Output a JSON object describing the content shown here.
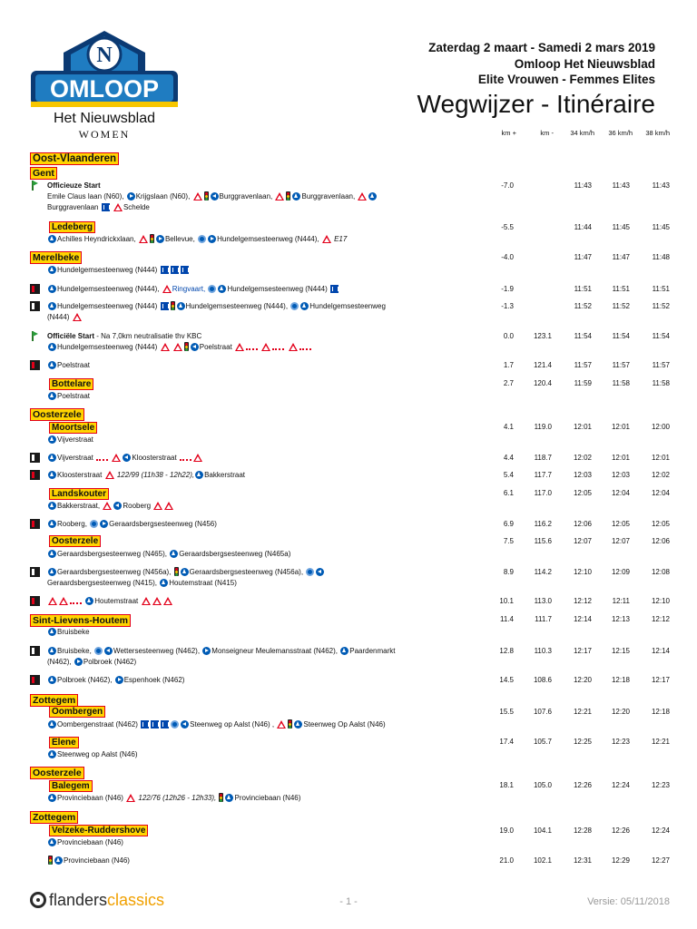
{
  "header": {
    "date": "Zaterdag 2 maart - Samedi 2 mars 2019",
    "race": "Omloop Het Nieuwsblad",
    "category": "Elite Vrouwen - Femmes Elites",
    "title": "Wegwijzer - Itinéraire"
  },
  "logo": {
    "letter": "N",
    "word": "OMLOOP",
    "sub": "Het Nieuwsblad",
    "women": "WOMEN",
    "colors": {
      "navy": "#0b3a73",
      "blue": "#1f7cc1",
      "yellow": "#f7c600"
    }
  },
  "columns": [
    "km +",
    "km -",
    "34 km/h",
    "36 km/h",
    "38 km/h"
  ],
  "regions": [
    "Oost-Vlaanderen",
    "Gent",
    "Merelbeke",
    "Oosterzele",
    "Sint-Lievens-Houtem",
    "Zottegem",
    "Oosterzele",
    "Zottegem"
  ],
  "towns": [
    "Ledeberg",
    "Bottelare",
    "Moortsele",
    "Landskouter",
    "Oosterzele",
    "Oombergen",
    "Elene",
    "Balegem",
    "Velzeke-Ruddershove"
  ],
  "rows": [
    {
      "l1": "Officieuze Start",
      "l2a": "Emile Claus laan (N60),",
      "l2b": "Krijgslaan (N60),",
      "l2c": "Burggravenlaan,",
      "l2d": "Burggravenlaan,",
      "l3a": "Burggravenlaan",
      "l3b": "Schelde",
      "km": "-7.0",
      "kmr": "",
      "t1": "11:43",
      "t2": "11:43",
      "t3": "11:43"
    },
    {
      "l1": "Achilles Heyndrickxlaan,",
      "l2": "Bellevue,",
      "l3": "Hundelgemsesteenweg (N444),",
      "l4": "E17",
      "km": "-5.5",
      "kmr": "",
      "t1": "11:44",
      "t2": "11:45",
      "t3": "11:45"
    },
    {
      "l1": "Hundelgemsesteenweg (N444)",
      "km": "-4.0",
      "kmr": "",
      "t1": "11:47",
      "t2": "11:47",
      "t3": "11:48"
    },
    {
      "l1": "Hundelgemsesteenweg (N444),",
      "l2": "Ringvaart,",
      "l3": "Hundelgemsesteenweg (N444)",
      "km": "-1.9",
      "kmr": "",
      "t1": "11:51",
      "t2": "11:51",
      "t3": "11:51"
    },
    {
      "l1": "Hundelgemsesteenweg (N444)",
      "l2": "Hundelgemsesteenweg (N444),",
      "l3": "Hundelgemsesteenweg",
      "l4": "(N444)",
      "km": "-1.3",
      "kmr": "",
      "t1": "11:52",
      "t2": "11:52",
      "t3": "11:52"
    },
    {
      "l1": "Officiële Start",
      "l1b": "- Na 7,0km neutralisatie thv KBC",
      "l2": "Hundelgemsesteenweg (N444)",
      "l3": "Poelstraat",
      "km": "0.0",
      "kmr": "123.1",
      "t1": "11:54",
      "t2": "11:54",
      "t3": "11:54"
    },
    {
      "l1": "Poelstraat",
      "km": "1.7",
      "kmr": "121.4",
      "t1": "11:57",
      "t2": "11:57",
      "t3": "11:57"
    },
    {
      "l1": "Poelstraat",
      "km": "2.7",
      "kmr": "120.4",
      "t1": "11:59",
      "t2": "11:58",
      "t3": "11:58"
    },
    {
      "l1": "Vijverstraat",
      "km": "4.1",
      "kmr": "119.0",
      "t1": "12:01",
      "t2": "12:01",
      "t3": "12:00"
    },
    {
      "l1": "Vijverstraat",
      "l2": "Kloosterstraat",
      "km": "4.4",
      "kmr": "118.7",
      "t1": "12:02",
      "t2": "12:01",
      "t3": "12:01"
    },
    {
      "l1": "Kloosterstraat",
      "l2": "122/99 (11h38 - 12h22),",
      "l3": "Bakkerstraat",
      "km": "5.4",
      "kmr": "117.7",
      "t1": "12:03",
      "t2": "12:03",
      "t3": "12:02"
    },
    {
      "l1": "Bakkerstraat,",
      "l2": "Rooberg",
      "km": "6.1",
      "kmr": "117.0",
      "t1": "12:05",
      "t2": "12:04",
      "t3": "12:04"
    },
    {
      "l1": "Rooberg,",
      "l2": "Geraardsbergsesteenweg (N456)",
      "km": "6.9",
      "kmr": "116.2",
      "t1": "12:06",
      "t2": "12:05",
      "t3": "12:05"
    },
    {
      "l1": "Geraardsbergsesteenweg (N465),",
      "l2": "Geraardsbergsesteenweg (N465a)",
      "km": "7.5",
      "kmr": "115.6",
      "t1": "12:07",
      "t2": "12:07",
      "t3": "12:06"
    },
    {
      "l1": "Geraardsbergsesteenweg (N456a),",
      "l2": "Geraardsbergsesteenweg (N456a),",
      "l3": "Geraardsbergsesteenweg (N415),",
      "l4": "Houtemstraat (N415)",
      "km": "8.9",
      "kmr": "114.2",
      "t1": "12:10",
      "t2": "12:09",
      "t3": "12:08"
    },
    {
      "l1": "Houtemstraat",
      "km": "10.1",
      "kmr": "113.0",
      "t1": "12:12",
      "t2": "12:11",
      "t3": "12:10"
    },
    {
      "l1": "Bruisbeke",
      "km": "11.4",
      "kmr": "111.7",
      "t1": "12:14",
      "t2": "12:13",
      "t3": "12:12"
    },
    {
      "l1": "Bruisbeke,",
      "l2": "Wettersesteenweg (N462),",
      "l3": "Monseigneur Meulemansstraat (N462),",
      "l4": "Paardenmarkt",
      "l5": "(N462),",
      "l6": "Polbroek (N462)",
      "km": "12.8",
      "kmr": "110.3",
      "t1": "12:17",
      "t2": "12:15",
      "t3": "12:14"
    },
    {
      "l1": "Polbroek (N462),",
      "l2": "Espenhoek (N462)",
      "km": "14.5",
      "kmr": "108.6",
      "t1": "12:20",
      "t2": "12:18",
      "t3": "12:17"
    },
    {
      "l1": "Oombergenstraat (N462)",
      "l2": "Steenweg op Aalst (N46) ,",
      "l3": "Steenweg Op Aalst (N46)",
      "km": "15.5",
      "kmr": "107.6",
      "t1": "12:21",
      "t2": "12:20",
      "t3": "12:18"
    },
    {
      "l1": "Steenweg op Aalst (N46)",
      "km": "17.4",
      "kmr": "105.7",
      "t1": "12:25",
      "t2": "12:23",
      "t3": "12:21"
    },
    {
      "l1": "Provinciebaan (N46)",
      "l2": "122/76 (12h26 - 12h33),",
      "l3": "Provinciebaan (N46)",
      "km": "18.1",
      "kmr": "105.0",
      "t1": "12:26",
      "t2": "12:24",
      "t3": "12:23"
    },
    {
      "l1": "Provinciebaan (N46)",
      "km": "19.0",
      "kmr": "104.1",
      "t1": "12:28",
      "t2": "12:26",
      "t3": "12:24"
    },
    {
      "l1": "Provinciebaan (N46)",
      "km": "21.0",
      "kmr": "102.1",
      "t1": "12:31",
      "t2": "12:29",
      "t3": "12:27"
    }
  ],
  "footer": {
    "brand_a": "flanders",
    "brand_b": "classics",
    "page": "- 1 -",
    "version": "Versie: 05/11/2018",
    "colors": {
      "dark": "#2b2b2b",
      "accent": "#f0a000"
    }
  }
}
